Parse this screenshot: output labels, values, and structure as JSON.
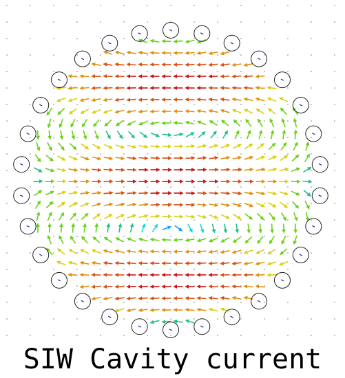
{
  "caption": "SIW Cavity current",
  "colors": {
    "background": "#ffffff",
    "via_outline": "#222222",
    "grid_dot": "#7a7a7a",
    "arrow_colormap": [
      "#1a1aa8",
      "#1aa0ff",
      "#18d8d0",
      "#20c080",
      "#6ad01a",
      "#d8d010",
      "#e09010",
      "#d85010",
      "#c81818"
    ]
  },
  "field": {
    "quantity": "surface current vector",
    "pattern": "SIW cavity resonant mode",
    "arrow_icon": "vector-arrow-icon",
    "via_icon": "via-circle-icon"
  }
}
